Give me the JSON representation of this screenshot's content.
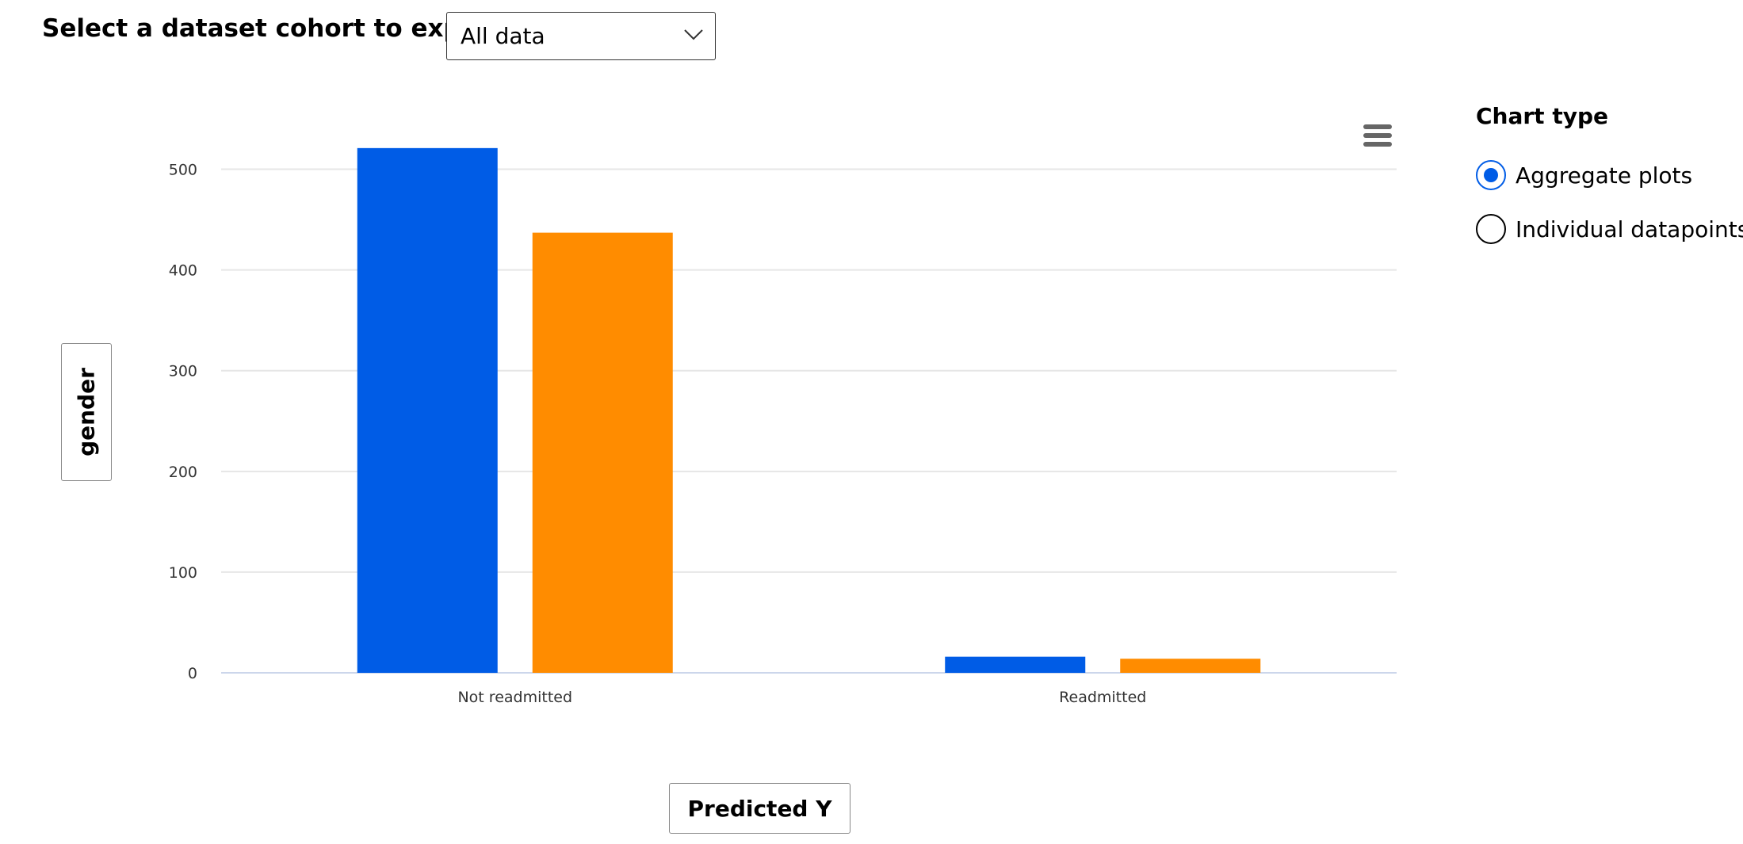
{
  "cohort": {
    "label": "Select a dataset cohort to explore",
    "selected": "All data"
  },
  "axes": {
    "y_button": "gender",
    "x_button": "Predicted Y"
  },
  "chart_type_panel": {
    "title": "Chart type",
    "options": [
      {
        "label": "Aggregate plots",
        "checked": true
      },
      {
        "label": "Individual datapoints",
        "checked": false
      }
    ]
  },
  "icons": {
    "menu": "hamburger-menu-icon",
    "dropdown": "chevron-down-icon"
  },
  "chart_data": {
    "type": "bar",
    "categories": [
      "Not readmitted",
      "Readmitted"
    ],
    "series": [
      {
        "values": [
          521,
          16
        ],
        "color": "#005ce6"
      },
      {
        "values": [
          437,
          14
        ],
        "color": "#ff8c00"
      }
    ],
    "ylim": [
      0,
      550
    ],
    "yticks": [
      0,
      100,
      200,
      300,
      400,
      500
    ],
    "grid": true,
    "legend": "none"
  }
}
